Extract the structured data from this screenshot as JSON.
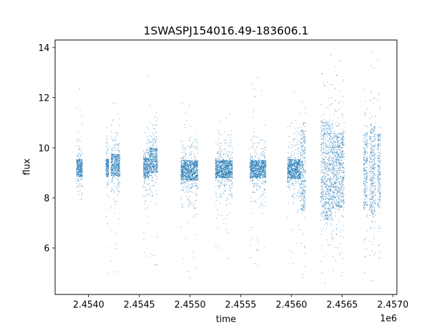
{
  "chart_data": {
    "type": "scatter",
    "title": "1SWASPJ154016.49-183606.1",
    "xlabel": "time",
    "ylabel": "flux",
    "x_offset_label": "1e6",
    "xlim": [
      2453670,
      2457040
    ],
    "ylim": [
      4.15,
      14.3
    ],
    "xticks": [
      2.454,
      2.4545,
      2.455,
      2.4555,
      2.456,
      2.4565,
      2.457
    ],
    "xtick_labels": [
      "2.4540",
      "2.4545",
      "2.4550",
      "2.4555",
      "2.4560",
      "2.4565",
      "2.4570"
    ],
    "yticks": [
      6,
      8,
      10,
      12,
      14
    ],
    "ytick_labels": [
      "6",
      "8",
      "10",
      "12",
      "14"
    ],
    "grid": false,
    "point_color": "#1f77b4",
    "series": [
      {
        "name": "",
        "clusters": [
          {
            "x_range": [
              2453880,
              2453940
            ],
            "center": 9.2,
            "core_halfwidth": 0.35,
            "spread": 1.2,
            "outlier_max": 13.2,
            "outlier_min": 5.0
          },
          {
            "x_range": [
              2454170,
              2454200
            ],
            "center": 9.2,
            "core_halfwidth": 0.35,
            "spread": 1.3,
            "outlier_max": 11.0,
            "outlier_min": 5.0
          },
          {
            "x_range": [
              2454220,
              2454310
            ],
            "center": 9.3,
            "core_halfwidth": 0.45,
            "spread": 1.5,
            "outlier_max": 12.7,
            "outlier_min": 4.6
          },
          {
            "x_range": [
              2454540,
              2454600
            ],
            "center": 9.2,
            "core_halfwidth": 0.4,
            "spread": 1.3,
            "outlier_max": 13.4,
            "outlier_min": 5.3
          },
          {
            "x_range": [
              2454600,
              2454680
            ],
            "center": 9.5,
            "core_halfwidth": 0.5,
            "spread": 1.5,
            "outlier_max": 11.7,
            "outlier_min": 5.0
          },
          {
            "x_range": [
              2454910,
              2455080
            ],
            "center": 9.1,
            "core_halfwidth": 0.4,
            "spread": 1.4,
            "outlier_max": 12.5,
            "outlier_min": 4.7
          },
          {
            "x_range": [
              2455250,
              2455420
            ],
            "center": 9.15,
            "core_halfwidth": 0.35,
            "spread": 1.2,
            "outlier_max": 11.4,
            "outlier_min": 5.4
          },
          {
            "x_range": [
              2455590,
              2455750
            ],
            "center": 9.15,
            "core_halfwidth": 0.35,
            "spread": 1.2,
            "outlier_max": 12.8,
            "outlier_min": 5.2
          },
          {
            "x_range": [
              2455960,
              2456090
            ],
            "center": 9.15,
            "core_halfwidth": 0.4,
            "spread": 1.3,
            "outlier_max": 13.1,
            "outlier_min": 5.0
          },
          {
            "x_range": [
              2456090,
              2456140
            ],
            "center": 9.1,
            "core_halfwidth": 1.6,
            "spread": 2.8,
            "outlier_max": 13.8,
            "outlier_min": 4.7
          },
          {
            "x_range": [
              2456290,
              2456410
            ],
            "center": 9.1,
            "core_halfwidth": 2.0,
            "spread": 3.0,
            "outlier_max": 13.8,
            "outlier_min": 4.6
          },
          {
            "x_range": [
              2456410,
              2456520
            ],
            "center": 9.1,
            "core_halfwidth": 1.5,
            "spread": 2.8,
            "outlier_max": 13.8,
            "outlier_min": 4.6
          },
          {
            "x_range": [
              2456710,
              2456750
            ],
            "center": 9.1,
            "core_halfwidth": 1.5,
            "spread": 2.6,
            "outlier_max": 13.8,
            "outlier_min": 4.8
          },
          {
            "x_range": [
              2456770,
              2456830
            ],
            "center": 9.1,
            "core_halfwidth": 1.8,
            "spread": 3.0,
            "outlier_max": 13.8,
            "outlier_min": 4.6
          },
          {
            "x_range": [
              2456850,
              2456880
            ],
            "center": 9.1,
            "core_halfwidth": 1.5,
            "spread": 2.8,
            "outlier_max": 13.8,
            "outlier_min": 4.7
          }
        ]
      }
    ]
  }
}
